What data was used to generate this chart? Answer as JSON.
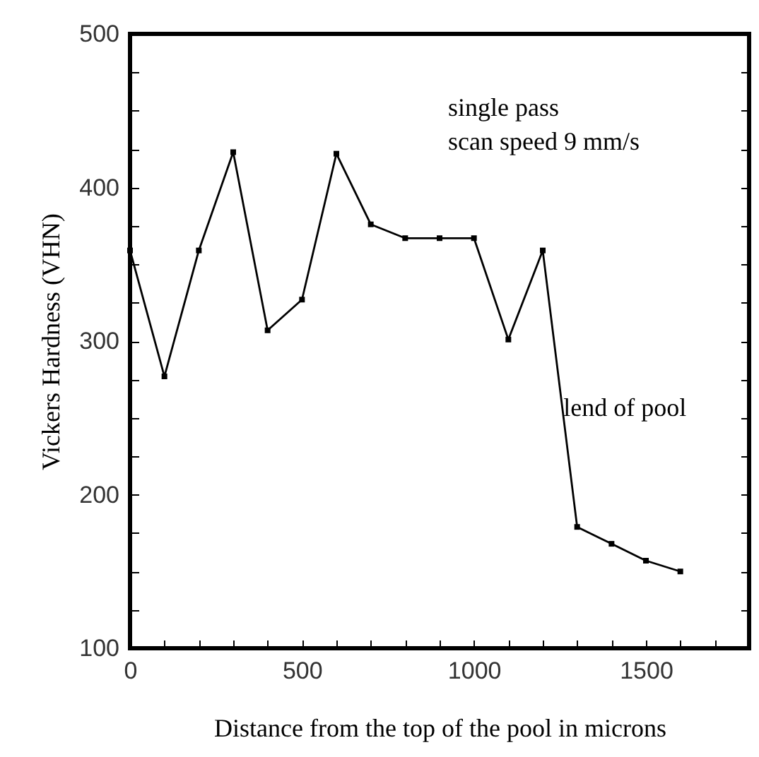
{
  "chart_data": {
    "type": "line",
    "xlabel": "Distance from the top of the pool in microns",
    "ylabel": "Vickers Hardness (VHN)",
    "x": [
      0,
      100,
      200,
      300,
      400,
      500,
      600,
      700,
      800,
      900,
      1000,
      1100,
      1200,
      1300,
      1400,
      1500,
      1600
    ],
    "series": [
      {
        "color": "#000000",
        "values": [
          359,
          277,
          359,
          423,
          307,
          327,
          422,
          376,
          367,
          367,
          367,
          301,
          359,
          179,
          168,
          157,
          150
        ]
      }
    ],
    "xlim": [
      0,
      1800
    ],
    "ylim": [
      100,
      500
    ],
    "xticks": [
      0,
      {
        "value": 100,
        "label": null
      },
      {
        "value": 200,
        "label": null
      },
      {
        "value": 300,
        "label": null
      },
      {
        "value": 400,
        "label": null
      },
      500,
      {
        "value": 600,
        "label": null
      },
      {
        "value": 700,
        "label": null
      },
      {
        "value": 800,
        "label": null
      },
      {
        "value": 900,
        "label": null
      },
      1000,
      {
        "value": 1100,
        "label": null
      },
      {
        "value": 1200,
        "label": null
      },
      {
        "value": 1300,
        "label": null
      },
      {
        "value": 1400,
        "label": null
      },
      1500,
      {
        "value": 1600,
        "label": null
      },
      {
        "value": 1700,
        "label": null
      }
    ],
    "yticks": [
      100,
      {
        "value": 125,
        "label": null
      },
      {
        "value": 150,
        "label": null
      },
      {
        "value": 175,
        "label": null
      },
      200,
      {
        "value": 225,
        "label": null
      },
      {
        "value": 250,
        "label": null
      },
      {
        "value": 275,
        "label": null
      },
      300,
      {
        "value": 325,
        "label": null
      },
      {
        "value": 350,
        "label": null
      },
      {
        "value": 375,
        "label": null
      },
      400,
      {
        "value": 425,
        "label": null
      },
      {
        "value": 450,
        "label": null
      },
      {
        "value": 475,
        "label": null
      },
      500
    ],
    "annotations": [
      "single pass",
      "scan speed 9 mm/s",
      {
        "text": "lend of pool",
        "x": 1260,
        "y": 256
      }
    ],
    "grid": false,
    "marker": "square",
    "line_style": "solid"
  }
}
